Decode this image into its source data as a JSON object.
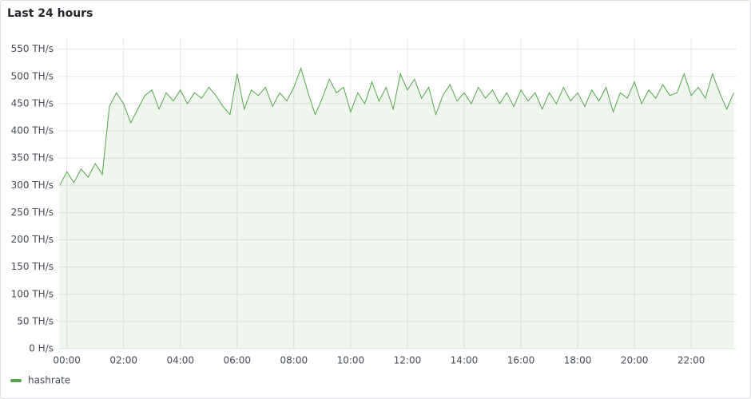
{
  "chart_data": {
    "type": "area",
    "title": "Last 24 hours",
    "x": [
      -0.25,
      0,
      0.25,
      0.5,
      0.75,
      1,
      1.25,
      1.5,
      1.75,
      2,
      2.25,
      2.5,
      2.75,
      3,
      3.25,
      3.5,
      3.75,
      4,
      4.25,
      4.5,
      4.75,
      5,
      5.25,
      5.5,
      5.75,
      6,
      6.25,
      6.5,
      6.75,
      7,
      7.25,
      7.5,
      7.75,
      8,
      8.25,
      8.5,
      8.75,
      9,
      9.25,
      9.5,
      9.75,
      10,
      10.25,
      10.5,
      10.75,
      11,
      11.25,
      11.5,
      11.75,
      12,
      12.25,
      12.5,
      12.75,
      13,
      13.25,
      13.5,
      13.75,
      14,
      14.25,
      14.5,
      14.75,
      15,
      15.25,
      15.5,
      15.75,
      16,
      16.25,
      16.5,
      16.75,
      17,
      17.25,
      17.5,
      17.75,
      18,
      18.25,
      18.5,
      18.75,
      19,
      19.25,
      19.5,
      19.75,
      20,
      20.25,
      20.5,
      20.75,
      21,
      21.25,
      21.5,
      21.75,
      22,
      22.25,
      22.5,
      22.75,
      23,
      23.25,
      23.5
    ],
    "series": [
      {
        "name": "hashrate",
        "color": "#56a64b",
        "values": [
          300,
          325,
          305,
          330,
          315,
          340,
          320,
          445,
          470,
          450,
          415,
          440,
          465,
          475,
          440,
          470,
          455,
          475,
          450,
          470,
          460,
          480,
          465,
          445,
          430,
          505,
          440,
          475,
          465,
          480,
          445,
          470,
          455,
          480,
          515,
          470,
          430,
          460,
          495,
          470,
          480,
          435,
          470,
          450,
          490,
          455,
          480,
          440,
          505,
          475,
          495,
          460,
          480,
          430,
          465,
          485,
          455,
          470,
          450,
          480,
          460,
          475,
          450,
          470,
          445,
          475,
          455,
          470,
          440,
          470,
          450,
          480,
          455,
          470,
          445,
          475,
          455,
          480,
          435,
          470,
          460,
          490,
          450,
          475,
          460,
          485,
          465,
          470,
          505,
          465,
          480,
          460,
          505,
          470,
          440,
          470
        ]
      }
    ],
    "xlim": [
      -0.3,
      23.6
    ],
    "xticks": [
      {
        "value": 0,
        "label": "00:00"
      },
      {
        "value": 2,
        "label": "02:00"
      },
      {
        "value": 4,
        "label": "04:00"
      },
      {
        "value": 6,
        "label": "06:00"
      },
      {
        "value": 8,
        "label": "08:00"
      },
      {
        "value": 10,
        "label": "10:00"
      },
      {
        "value": 12,
        "label": "12:00"
      },
      {
        "value": 14,
        "label": "14:00"
      },
      {
        "value": 16,
        "label": "16:00"
      },
      {
        "value": 18,
        "label": "18:00"
      },
      {
        "value": 20,
        "label": "20:00"
      },
      {
        "value": 22,
        "label": "22:00"
      }
    ],
    "ylim": [
      0,
      570
    ],
    "yticks": [
      {
        "value": 0,
        "label": "0 H/s"
      },
      {
        "value": 50,
        "label": "50 TH/s"
      },
      {
        "value": 100,
        "label": "100 TH/s"
      },
      {
        "value": 150,
        "label": "150 TH/s"
      },
      {
        "value": 200,
        "label": "200 TH/s"
      },
      {
        "value": 250,
        "label": "250 TH/s"
      },
      {
        "value": 300,
        "label": "300 TH/s"
      },
      {
        "value": 350,
        "label": "350 TH/s"
      },
      {
        "value": 400,
        "label": "400 TH/s"
      },
      {
        "value": 450,
        "label": "450 TH/s"
      },
      {
        "value": 500,
        "label": "500 TH/s"
      },
      {
        "value": 550,
        "label": "550 TH/s"
      }
    ],
    "grid": true,
    "legend": "bottom-left"
  }
}
